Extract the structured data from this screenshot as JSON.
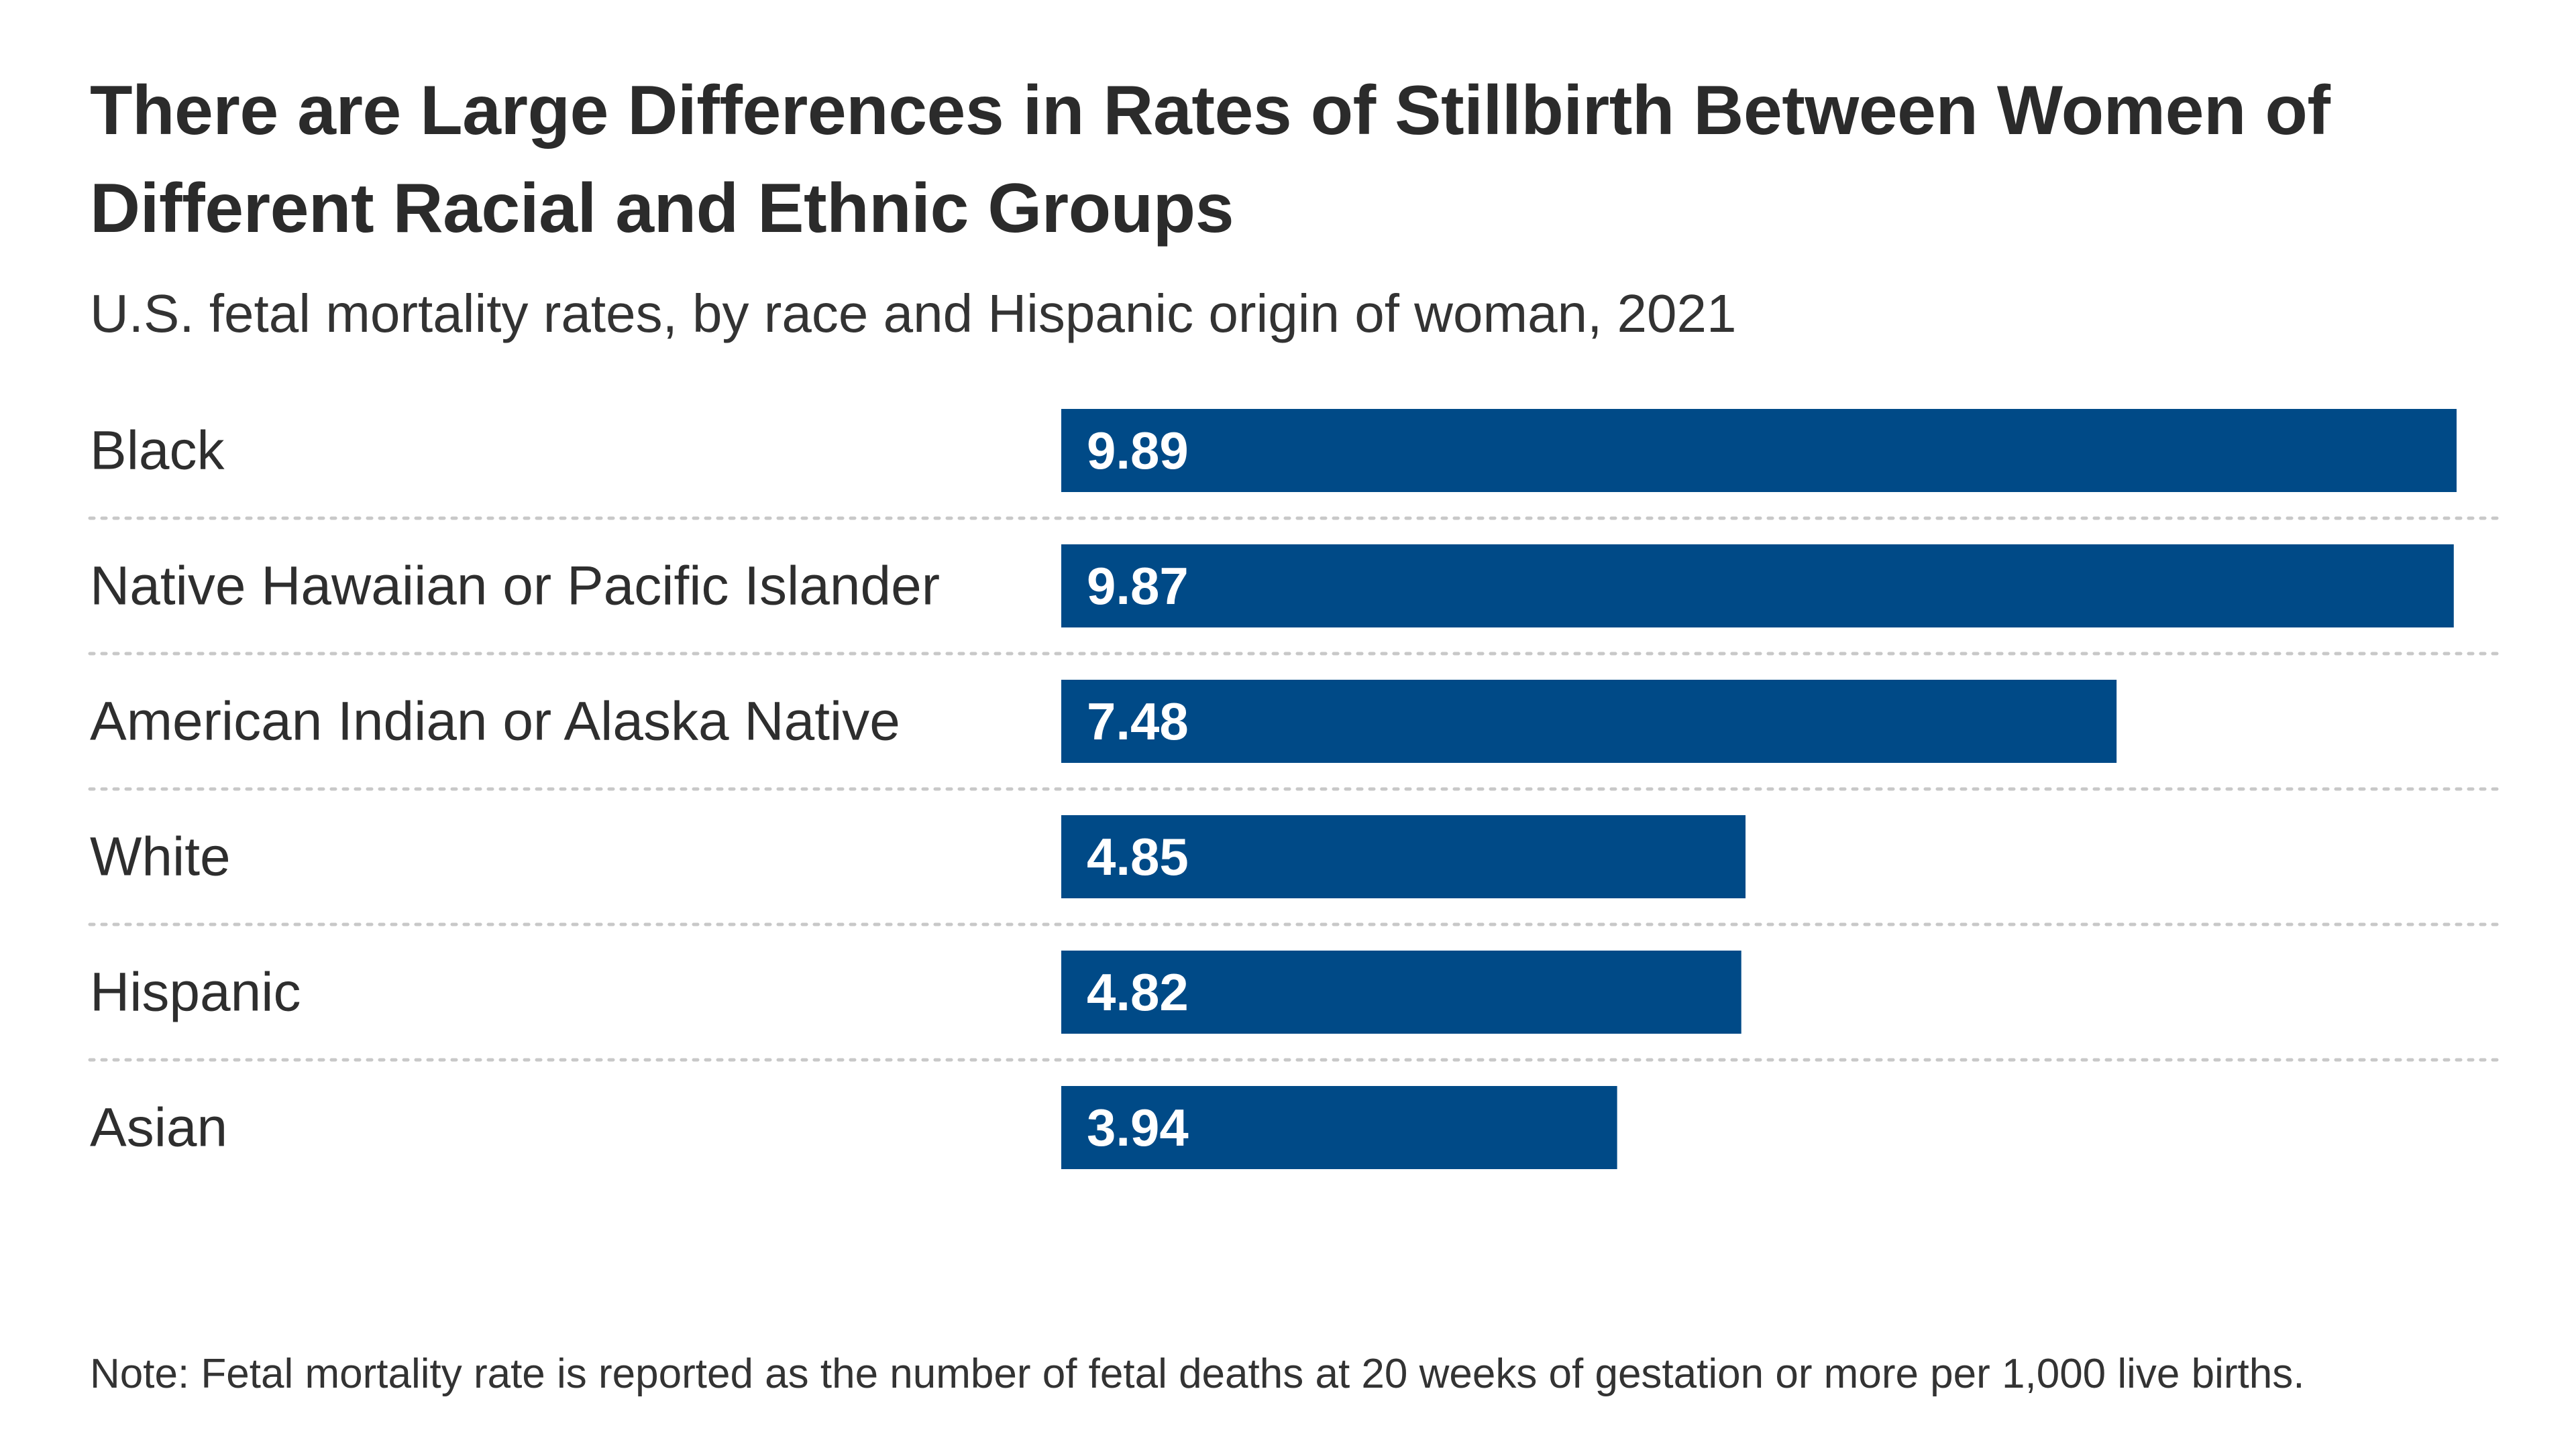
{
  "title": "There are Large Differences in Rates of Stillbirth Between Women of Different Racial and Ethnic Groups",
  "subtitle": "U.S. fetal mortality rates, by race and Hispanic origin of woman, 2021",
  "note": "Note: Fetal mortality rate is reported as the number of fetal deaths at 20 weeks of gestation or more per 1,000 live births.",
  "colors": {
    "bar": "#004a87",
    "divider": "#c8c8c8"
  },
  "chart_data": {
    "type": "bar",
    "orientation": "horizontal",
    "categories": [
      "Black",
      "Native Hawaiian or Pacific Islander",
      "American Indian or Alaska Native",
      "White",
      "Hispanic",
      "Asian"
    ],
    "values": [
      9.89,
      9.87,
      7.48,
      4.85,
      4.82,
      3.94
    ],
    "value_labels": [
      "9.89",
      "9.87",
      "7.48",
      "4.85",
      "4.82",
      "3.94"
    ],
    "title": "There are Large Differences in Rates of Stillbirth Between Women of Different Racial and Ethnic Groups",
    "xlabel": "",
    "ylabel": "",
    "xlim": [
      0,
      9.89
    ],
    "grid": false,
    "legend": "none"
  }
}
